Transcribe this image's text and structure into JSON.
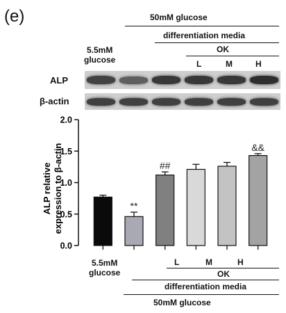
{
  "panel_label": "(e)",
  "top_header": {
    "glucose_high": "50mM glucose",
    "differentiation": "differentiation media",
    "ok": "OK",
    "doses": [
      "L",
      "M",
      "H"
    ],
    "glucose_low_line1": "5.5mM",
    "glucose_low_line2": "glucose"
  },
  "blots": [
    {
      "label": "ALP",
      "intensities": [
        0.78,
        0.62,
        0.85,
        0.85,
        0.85,
        0.9
      ]
    },
    {
      "label": "β-actin",
      "intensities": [
        0.8,
        0.8,
        0.8,
        0.8,
        0.8,
        0.8
      ]
    }
  ],
  "chart_data": {
    "type": "bar",
    "ylabel_line1": "ALP relative",
    "ylabel_line2": "expression to β-actin",
    "ylim": [
      0,
      2.0
    ],
    "yticks": [
      "0.0",
      "0.5",
      "1.0",
      "1.5",
      "2.0"
    ],
    "ytick_values": [
      0,
      0.5,
      1.0,
      1.5,
      2.0
    ],
    "values": [
      0.77,
      0.46,
      1.12,
      1.21,
      1.26,
      1.43
    ],
    "errors": [
      0.03,
      0.07,
      0.05,
      0.08,
      0.06,
      0.03
    ],
    "bar_colors": [
      "#0a0a0a",
      "#a9a9b3",
      "#808080",
      "#d9d9d9",
      "#c3c3c3",
      "#a3a3a3"
    ],
    "significance": [
      "",
      "**",
      "##",
      "",
      "",
      "&&"
    ],
    "bottom_labels": {
      "glucose_low_line1": "5.5mM",
      "glucose_low_line2": "glucose",
      "doses": [
        "L",
        "M",
        "H"
      ],
      "ok": "OK",
      "differentiation": "differentiation media",
      "glucose_high": "50mM glucose"
    }
  }
}
